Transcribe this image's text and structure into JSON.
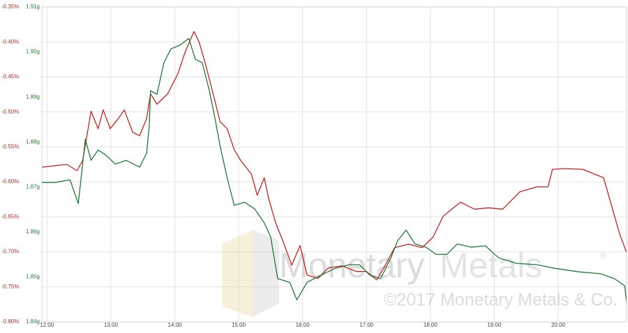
{
  "chart_data": {
    "type": "line",
    "xticks": [
      {
        "value": 12,
        "label": "12:00"
      },
      {
        "value": 13,
        "label": "13:00"
      },
      {
        "value": 14,
        "label": "14:00"
      },
      {
        "value": 15,
        "label": "15:00"
      },
      {
        "value": 16,
        "label": "16:00"
      },
      {
        "value": 17,
        "label": "17:00"
      },
      {
        "value": 18,
        "label": "18:00"
      },
      {
        "value": 19,
        "label": "19:00"
      },
      {
        "value": 20,
        "label": "20:00"
      }
    ],
    "xlim": [
      11.92,
      21.07
    ],
    "ylim": [
      -0.8,
      -0.35
    ],
    "yticks": [
      {
        "value": -0.35,
        "label": "-0.35%"
      },
      {
        "value": -0.4,
        "label": "-0.40%"
      },
      {
        "value": -0.45,
        "label": "-0.45%"
      },
      {
        "value": -0.5,
        "label": "-0.50%"
      },
      {
        "value": -0.55,
        "label": "-0.55%"
      },
      {
        "value": -0.6,
        "label": "-0.60%"
      },
      {
        "value": -0.65,
        "label": "-0.65%"
      },
      {
        "value": -0.7,
        "label": "-0.70%"
      },
      {
        "value": -0.75,
        "label": "-0.75%"
      },
      {
        "value": -0.8,
        "label": "-0.80%"
      }
    ],
    "y2lim": [
      1.84,
      1.91
    ],
    "y2ticks": [
      {
        "value": 1.91,
        "label": "1.91g"
      },
      {
        "value": 1.9,
        "label": "1.90g"
      },
      {
        "value": 1.89,
        "label": "1.89g"
      },
      {
        "value": 1.88,
        "label": "1.88g"
      },
      {
        "value": 1.87,
        "label": "1.87g"
      },
      {
        "value": 1.86,
        "label": "1.86g"
      },
      {
        "value": 1.85,
        "label": "1.85g"
      },
      {
        "value": 1.84,
        "label": "1.84g"
      }
    ],
    "ytick_color": "#b03030",
    "y2tick_color": "#2e7a3e",
    "grid": true,
    "series": [
      {
        "color": "#cc1f1f",
        "axis": "y",
        "x": [
          11.92,
          12.31,
          12.47,
          12.56,
          12.69,
          12.8,
          12.88,
          12.99,
          13.12,
          13.21,
          13.34,
          13.45,
          13.56,
          13.62,
          13.72,
          13.89,
          14.05,
          14.16,
          14.3,
          14.38,
          14.49,
          14.6,
          14.71,
          14.82,
          14.93,
          15.03,
          15.2,
          15.29,
          15.4,
          15.47,
          15.58,
          15.69,
          15.83,
          15.96,
          16.07,
          16.24,
          16.4,
          16.62,
          16.84,
          17.0,
          17.16,
          17.27,
          17.44,
          17.66,
          17.87,
          18.04,
          18.2,
          18.47,
          18.69,
          18.91,
          19.13,
          19.4,
          19.67,
          19.84,
          19.91,
          20.11,
          20.38,
          20.71,
          20.85,
          20.96,
          21.07
        ],
        "values": [
          -0.579,
          -0.575,
          -0.584,
          -0.569,
          -0.499,
          -0.524,
          -0.497,
          -0.524,
          -0.509,
          -0.497,
          -0.529,
          -0.534,
          -0.509,
          -0.474,
          -0.489,
          -0.474,
          -0.445,
          -0.415,
          -0.385,
          -0.4,
          -0.435,
          -0.474,
          -0.514,
          -0.524,
          -0.554,
          -0.569,
          -0.589,
          -0.619,
          -0.594,
          -0.624,
          -0.659,
          -0.684,
          -0.719,
          -0.691,
          -0.733,
          -0.738,
          -0.723,
          -0.72,
          -0.728,
          -0.728,
          -0.74,
          -0.723,
          -0.694,
          -0.689,
          -0.694,
          -0.679,
          -0.649,
          -0.629,
          -0.639,
          -0.637,
          -0.639,
          -0.614,
          -0.607,
          -0.607,
          -0.582,
          -0.581,
          -0.582,
          -0.594,
          -0.639,
          -0.674,
          -0.701
        ]
      },
      {
        "color": "#1f7a35",
        "axis": "y2",
        "x": [
          11.92,
          12.14,
          12.36,
          12.49,
          12.6,
          12.69,
          12.8,
          12.91,
          13.07,
          13.24,
          13.45,
          13.56,
          13.6,
          13.62,
          13.72,
          13.83,
          13.94,
          14.08,
          14.22,
          14.32,
          14.43,
          14.54,
          14.63,
          14.71,
          14.82,
          14.93,
          15.09,
          15.25,
          15.4,
          15.5,
          15.61,
          15.8,
          15.91,
          16.07,
          16.29,
          16.51,
          16.73,
          16.89,
          17.05,
          17.22,
          17.38,
          17.49,
          17.62,
          17.76,
          17.93,
          18.09,
          18.26,
          18.42,
          18.64,
          18.86,
          19.07,
          19.35,
          19.67,
          19.95,
          20.33,
          20.66,
          20.88,
          21.04,
          21.07
        ],
        "values": [
          1.871,
          1.871,
          1.8716,
          1.8663,
          1.8806,
          1.8759,
          1.8782,
          1.8772,
          1.8751,
          1.8759,
          1.8744,
          1.8775,
          1.8837,
          1.8914,
          1.8906,
          1.8976,
          1.9007,
          1.9015,
          1.903,
          1.8984,
          1.8976,
          1.8914,
          1.8852,
          1.879,
          1.872,
          1.8659,
          1.8666,
          1.8651,
          1.862,
          1.8589,
          1.8496,
          1.8488,
          1.8449,
          1.8488,
          1.8504,
          1.8519,
          1.8527,
          1.8527,
          1.8504,
          1.8496,
          1.8542,
          1.8581,
          1.8604,
          1.8573,
          1.8566,
          1.855,
          1.855,
          1.8573,
          1.8566,
          1.8569,
          1.8542,
          1.853,
          1.8527,
          1.8519,
          1.8511,
          1.8507,
          1.8496,
          1.848,
          1.8442
        ]
      }
    ],
    "watermark": {
      "brand_first": "Monetary",
      "brand_second": "Metals",
      "mark": "®",
      "copyright": "©2017 Monetary Metals & Co."
    }
  }
}
